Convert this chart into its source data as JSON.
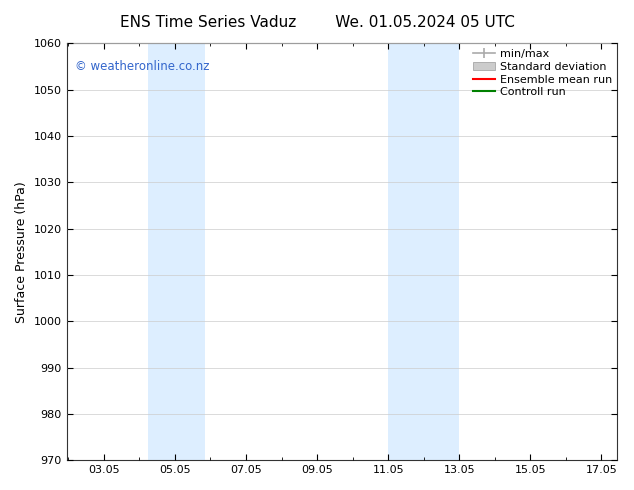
{
  "title_left": "ENS Time Series Vaduz",
  "title_right": "We. 01.05.2024 05 UTC",
  "ylabel": "Surface Pressure (hPa)",
  "xlim": [
    2.0,
    17.5
  ],
  "ylim": [
    970,
    1060
  ],
  "yticks": [
    970,
    980,
    990,
    1000,
    1010,
    1020,
    1030,
    1040,
    1050,
    1060
  ],
  "xticks": [
    3.05,
    5.05,
    7.05,
    9.05,
    11.05,
    13.05,
    15.05,
    17.05
  ],
  "xticklabels": [
    "03.05",
    "05.05",
    "07.05",
    "09.05",
    "11.05",
    "13.05",
    "15.05",
    "17.05"
  ],
  "shaded_color": "#ddeeff",
  "band1_x1": 4.3,
  "band1_x2": 5.05,
  "band2_x1": 5.05,
  "band2_x2": 5.9,
  "band3_x1": 11.05,
  "band3_x2": 11.7,
  "band4_x1": 11.7,
  "band4_x2": 13.05,
  "watermark": "© weatheronline.co.nz",
  "watermark_color": "#3366cc",
  "background_color": "#ffffff",
  "legend_minmax_color": "#aaaaaa",
  "legend_std_color": "#cccccc",
  "legend_ens_color": "#ff0000",
  "legend_ctrl_color": "#008000",
  "legend_minmax_label": "min/max",
  "legend_std_label": "Standard deviation",
  "legend_ens_label": "Ensemble mean run",
  "legend_ctrl_label": "Controll run",
  "title_fontsize": 11,
  "axis_label_fontsize": 9,
  "tick_fontsize": 8,
  "legend_fontsize": 8
}
